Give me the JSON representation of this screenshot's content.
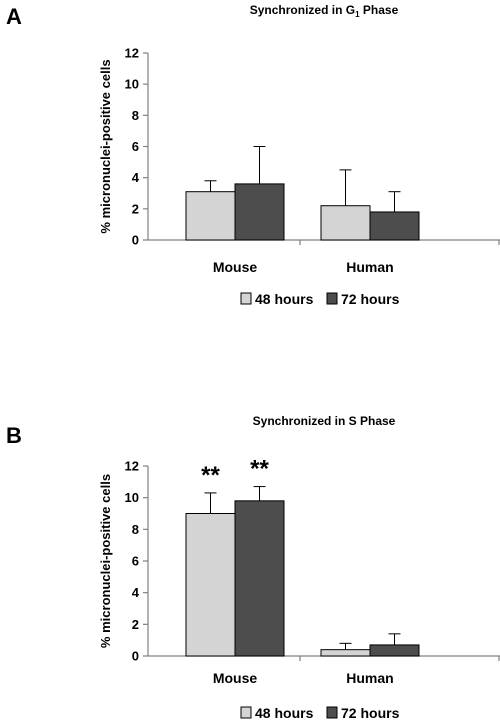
{
  "colors": {
    "series_48": "#d4d4d4",
    "series_72": "#4d4d4d",
    "axis": "#808080"
  },
  "chart_data": [
    {
      "panel": "A",
      "type": "bar",
      "title": "Synchronized in G",
      "title_subscript": "1",
      "title_suffix": " Phase",
      "ylabel": "% micronuclei-positive cells",
      "xlabel": "",
      "ylim": [
        0,
        12
      ],
      "yticks": [
        0,
        2,
        4,
        6,
        8,
        10,
        12
      ],
      "grid": false,
      "legend": "bottom",
      "categories": [
        "Mouse",
        "Human"
      ],
      "series": [
        {
          "name": "48 hours",
          "values": [
            3.1,
            2.2
          ],
          "errors": [
            0.7,
            2.3
          ]
        },
        {
          "name": "72 hours",
          "values": [
            3.6,
            1.8
          ],
          "errors": [
            2.4,
            1.3
          ]
        }
      ],
      "annotations": []
    },
    {
      "panel": "B",
      "type": "bar",
      "title": "Synchronized in S Phase",
      "title_subscript": "",
      "title_suffix": "",
      "ylabel": "% micronuclei-positive cells",
      "xlabel": "",
      "ylim": [
        0,
        12
      ],
      "yticks": [
        0,
        2,
        4,
        6,
        8,
        10,
        12
      ],
      "grid": false,
      "legend": "bottom",
      "categories": [
        "Mouse",
        "Human"
      ],
      "series": [
        {
          "name": "48 hours",
          "values": [
            9.0,
            0.4
          ],
          "errors": [
            1.3,
            0.4
          ]
        },
        {
          "name": "72 hours",
          "values": [
            9.8,
            0.7
          ],
          "errors": [
            0.9,
            0.7
          ]
        }
      ],
      "annotations": [
        {
          "category": 0,
          "series": 0,
          "text": "**"
        },
        {
          "category": 0,
          "series": 1,
          "text": "**"
        }
      ]
    }
  ]
}
